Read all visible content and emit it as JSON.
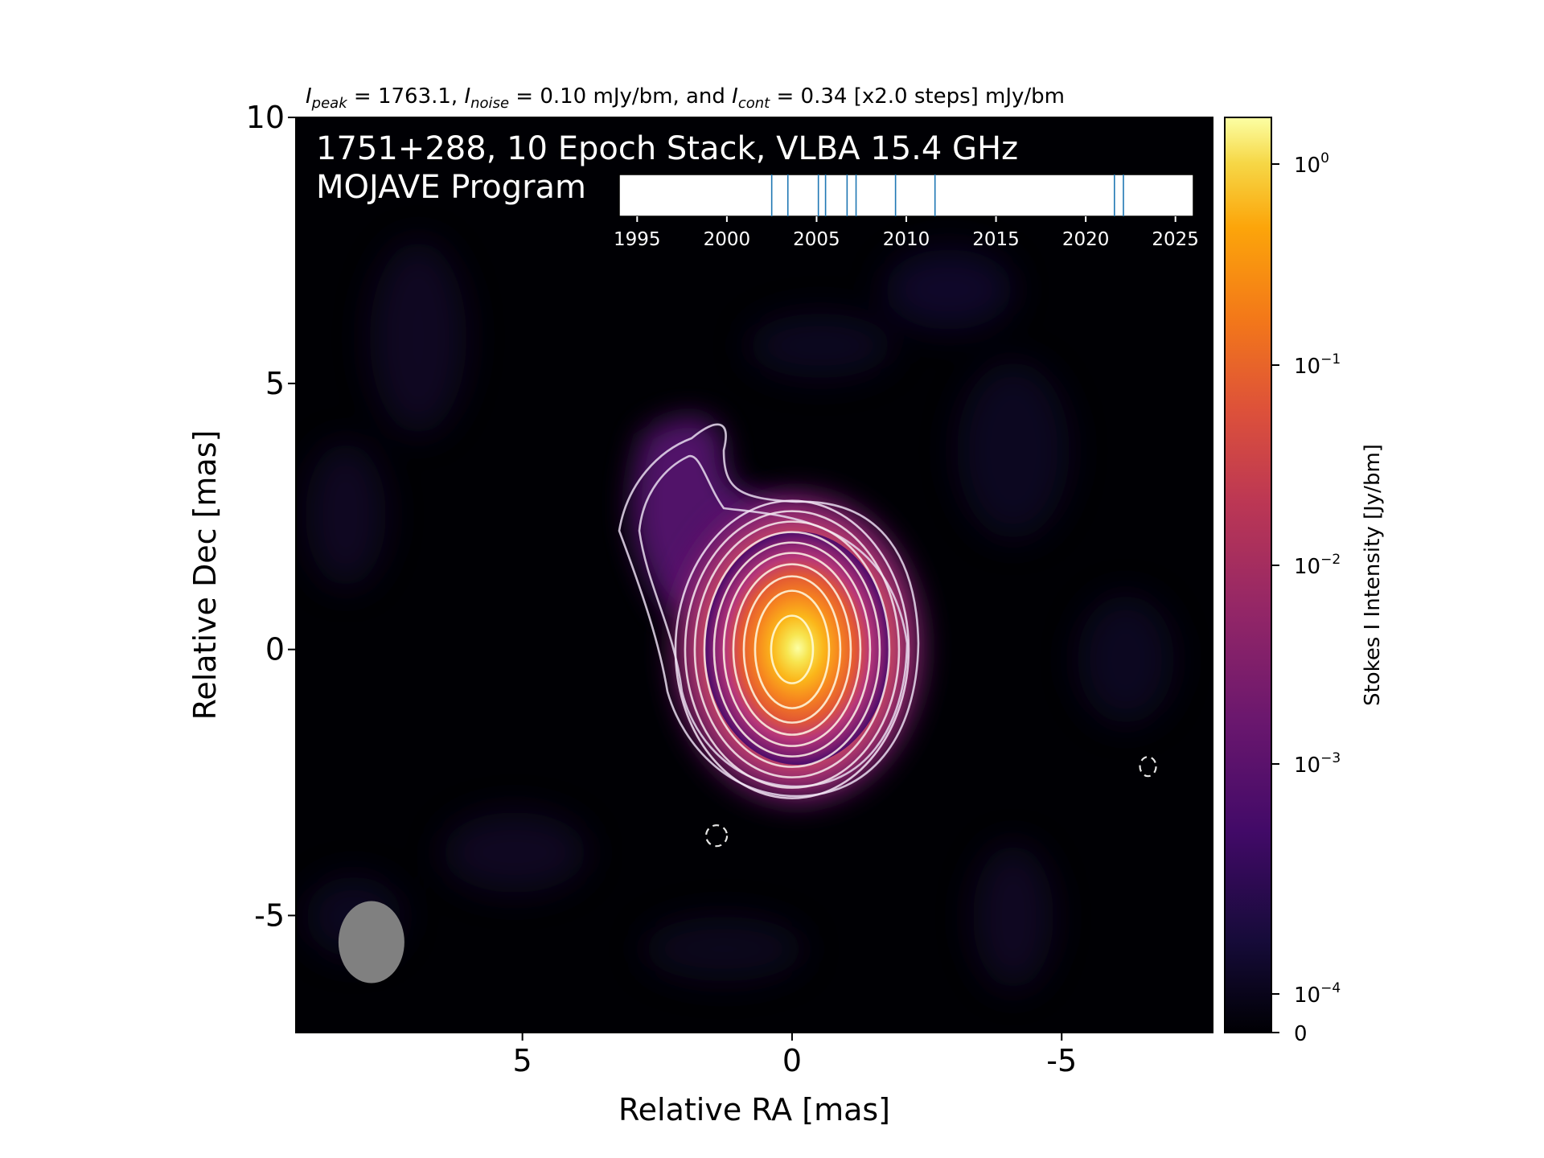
{
  "chart_data": {
    "type": "heatmap",
    "caption": {
      "peak_symbol": "I",
      "peak_sub": "peak",
      "peak_text": " = 1763.1, ",
      "noise_symbol": "I",
      "noise_sub": "noise",
      "noise_text": " = 0.10 mJy/bm, and ",
      "cont_symbol": "I",
      "cont_sub": "cont",
      "cont_text": " = 0.34 [x2.0 steps] mJy/bm"
    },
    "title_line1": "1751+288, 10 Epoch Stack, VLBA 15.4 GHz",
    "title_line2": "MOJAVE Program",
    "xlabel": "Relative RA [mas]",
    "ylabel": "Relative Dec [mas]",
    "xlim": [
      9.2,
      -7.8
    ],
    "ylim": [
      -7.2,
      10
    ],
    "x_ticks": [
      {
        "value": 5,
        "label": "5"
      },
      {
        "value": 0,
        "label": "0"
      },
      {
        "value": -5,
        "label": "-5"
      }
    ],
    "y_ticks": [
      {
        "value": 10,
        "label": "10"
      },
      {
        "value": 5,
        "label": "5"
      },
      {
        "value": 0,
        "label": "0"
      },
      {
        "value": -5,
        "label": "-5"
      }
    ],
    "peak_position": [
      0,
      0
    ],
    "peak_intensity_mJy": 1763.1,
    "noise_mJy": 0.1,
    "contour_base_mJy": 0.34,
    "contour_step_factor": 2.0,
    "negative_contours": [
      {
        "x": 1.4,
        "y": -3.5
      },
      {
        "x": -6.6,
        "y": -2.2
      }
    ],
    "beam": {
      "x": 7.8,
      "y": -5.5,
      "major_mas": 1.6,
      "minor_mas": 1.25,
      "color": "#808080"
    },
    "colorbar": {
      "label": "Stokes I Intensity [Jy/bm]",
      "colormap": "inferno",
      "scale": "log",
      "ticks": [
        {
          "base": "10",
          "exp": "0"
        },
        {
          "base": "10",
          "exp": "−1"
        },
        {
          "base": "10",
          "exp": "−2"
        },
        {
          "base": "10",
          "exp": "−3"
        },
        {
          "base": "10",
          "exp": "−4"
        },
        {
          "base": "0",
          "exp": ""
        }
      ]
    },
    "epoch_timeline": {
      "xlim": [
        1994,
        2026
      ],
      "ticks": [
        "1995",
        "2000",
        "2005",
        "2010",
        "2015",
        "2020",
        "2025"
      ],
      "epochs": [
        2002.5,
        2003.4,
        2005.1,
        2005.5,
        2006.7,
        2007.2,
        2009.4,
        2011.6,
        2021.6,
        2022.1
      ],
      "line_color": "#1f77b4"
    }
  }
}
